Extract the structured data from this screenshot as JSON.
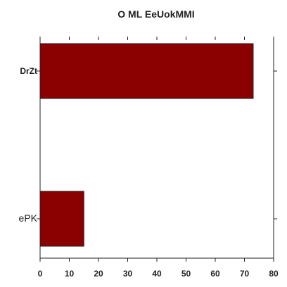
{
  "chart_data": {
    "type": "bar",
    "orientation": "horizontal",
    "title": "O ML  EeUokMMI",
    "categories": [
      "DrZt",
      "ePK"
    ],
    "values": [
      73,
      15
    ],
    "xlim": [
      0,
      80
    ],
    "xticks": [
      "0",
      "10",
      "20",
      "30",
      "40",
      "50",
      "60",
      "70",
      "80"
    ],
    "xlabel": "",
    "ylabel": "",
    "grid": false,
    "bar_color": "#8b0000"
  }
}
